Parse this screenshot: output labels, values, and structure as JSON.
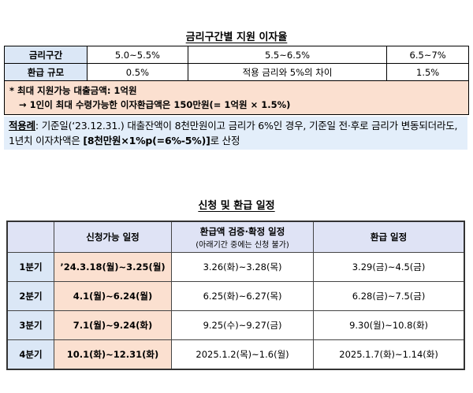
{
  "section1": {
    "title": "금리구간별 지원 이자율",
    "table": {
      "rows": [
        [
          "금리구간",
          "5.0~5.5%",
          "5.5~6.5%",
          "6.5~7%"
        ],
        [
          "환급 규모",
          "0.5%",
          "적용 금리와 5%의 차이",
          "1.5%"
        ]
      ],
      "notes": [
        "* 최대 지원가능 대출금액: 1억원",
        "→ 1인이 최대 수령가능한 이자환급액은 150만원(= 1억원 × 1.5%)"
      ]
    },
    "example": {
      "label": "적용례",
      "text": ": 기준일(‘23.12.31.) 대출잔액이 8천만원이고 금리가 6%인 경우, 기준일 전·후로 금리가 변동되더라도, 1년치 이자차액은 ",
      "highlight": "[8천만원×1%p(=6%-5%)]",
      "tail": "로 산정"
    }
  },
  "section2": {
    "title": "신청 및 환급 일정",
    "table": {
      "header": [
        "신청가능 일정",
        "환급액 검증·확정 일정",
        "환급 일정"
      ],
      "header_note": "(아래기간 중에는 신청 불가)",
      "rows": [
        [
          "1분기",
          "’24.3.18(월)~3.25(월)",
          "3.26(화)~3.28(목)",
          "3.29(금)~4.5(금)"
        ],
        [
          "2분기",
          "4.1(월)~6.24(월)",
          "6.25(화)~6.27(목)",
          "6.28(금)~7.5(금)"
        ],
        [
          "3분기",
          "7.1(월)~9.24(화)",
          "9.25(수)~9.27(금)",
          "9.30(월)~10.8(화)"
        ],
        [
          "4분기",
          "10.1(화)~12.31(화)",
          "2025.1.2(목)~1.6(월)",
          "2025.1.7(화)~1.14(화)"
        ]
      ]
    }
  }
}
